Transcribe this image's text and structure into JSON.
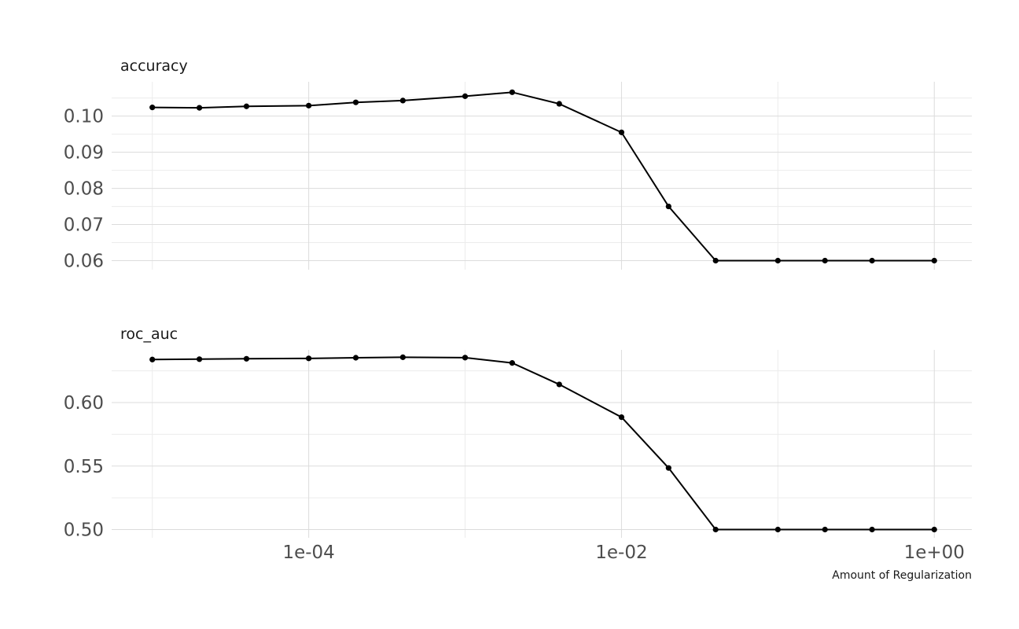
{
  "chart_data": {
    "type": "line",
    "x_scale": "log10",
    "grid": true,
    "x": [
      1e-05,
      2e-05,
      4e-05,
      0.0001,
      0.0002,
      0.0004,
      0.001,
      0.002,
      0.004,
      0.01,
      0.02,
      0.04,
      0.1,
      0.2,
      0.4,
      1
    ],
    "xlabel": "Amount of Regularization",
    "x_ticks": [
      {
        "value": 0.0001,
        "label": "1e-04"
      },
      {
        "value": 0.01,
        "label": "1e-02"
      },
      {
        "value": 1,
        "label": "1e+00"
      }
    ],
    "panels": [
      {
        "title": "accuracy",
        "ylim": [
          0.0575,
          0.1095
        ],
        "y_ticks": [
          {
            "value": 0.06,
            "label": "0.06"
          },
          {
            "value": 0.07,
            "label": "0.07"
          },
          {
            "value": 0.08,
            "label": "0.08"
          },
          {
            "value": 0.09,
            "label": "0.09"
          },
          {
            "value": 0.1,
            "label": "0.10"
          }
        ],
        "values": [
          0.1024,
          0.1023,
          0.1027,
          0.1029,
          0.1038,
          0.1043,
          0.1055,
          0.1066,
          0.1034,
          0.0955,
          0.075,
          0.06,
          0.06,
          0.06,
          0.06,
          0.06
        ]
      },
      {
        "title": "roc_auc",
        "ylim": [
          0.4935,
          0.6415
        ],
        "y_ticks": [
          {
            "value": 0.5,
            "label": "0.50"
          },
          {
            "value": 0.55,
            "label": "0.55"
          },
          {
            "value": 0.6,
            "label": "0.60"
          }
        ],
        "values": [
          0.6339,
          0.6342,
          0.6345,
          0.6348,
          0.6353,
          0.6357,
          0.6354,
          0.6312,
          0.6143,
          0.5885,
          0.5485,
          0.5,
          0.5,
          0.5,
          0.5,
          0.5
        ]
      }
    ]
  }
}
